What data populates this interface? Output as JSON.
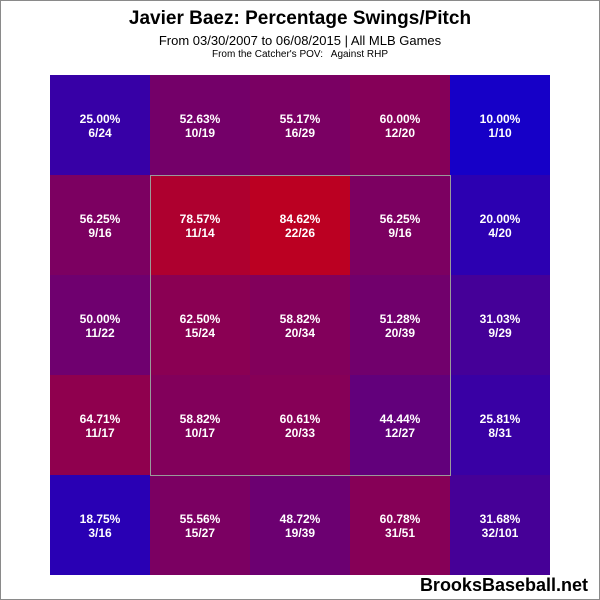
{
  "header": {
    "title": "Javier Baez: Percentage Swings/Pitch",
    "subtitle": "From 03/30/2007 to 06/08/2015 | All MLB Games",
    "note": "From the Catcher's POV:   Against RHP"
  },
  "footer": {
    "brand": "BrooksBaseball.net"
  },
  "colors": {
    "low": "#0000dd",
    "high": "#dd0000",
    "strike_zone_border": "#9a9a9a",
    "cell_text": "#ffffff"
  },
  "chart_data": {
    "type": "heatmap",
    "title": "Javier Baez: Percentage Swings/Pitch",
    "rows": 5,
    "cols": 5,
    "value_range": [
      0,
      100
    ],
    "strike_zone": {
      "row_start": 1,
      "row_end": 3,
      "col_start": 1,
      "col_end": 3
    },
    "cells": [
      [
        {
          "pct": "25.00%",
          "count": "6/24",
          "value": 25.0
        },
        {
          "pct": "52.63%",
          "count": "10/19",
          "value": 52.63
        },
        {
          "pct": "55.17%",
          "count": "16/29",
          "value": 55.17
        },
        {
          "pct": "60.00%",
          "count": "12/20",
          "value": 60.0
        },
        {
          "pct": "10.00%",
          "count": "1/10",
          "value": 10.0
        }
      ],
      [
        {
          "pct": "56.25%",
          "count": "9/16",
          "value": 56.25
        },
        {
          "pct": "78.57%",
          "count": "11/14",
          "value": 78.57
        },
        {
          "pct": "84.62%",
          "count": "22/26",
          "value": 84.62
        },
        {
          "pct": "56.25%",
          "count": "9/16",
          "value": 56.25
        },
        {
          "pct": "20.00%",
          "count": "4/20",
          "value": 20.0
        }
      ],
      [
        {
          "pct": "50.00%",
          "count": "11/22",
          "value": 50.0
        },
        {
          "pct": "62.50%",
          "count": "15/24",
          "value": 62.5
        },
        {
          "pct": "58.82%",
          "count": "20/34",
          "value": 58.82
        },
        {
          "pct": "51.28%",
          "count": "20/39",
          "value": 51.28
        },
        {
          "pct": "31.03%",
          "count": "9/29",
          "value": 31.03
        }
      ],
      [
        {
          "pct": "64.71%",
          "count": "11/17",
          "value": 64.71
        },
        {
          "pct": "58.82%",
          "count": "10/17",
          "value": 58.82
        },
        {
          "pct": "60.61%",
          "count": "20/33",
          "value": 60.61
        },
        {
          "pct": "44.44%",
          "count": "12/27",
          "value": 44.44
        },
        {
          "pct": "25.81%",
          "count": "8/31",
          "value": 25.81
        }
      ],
      [
        {
          "pct": "18.75%",
          "count": "3/16",
          "value": 18.75
        },
        {
          "pct": "55.56%",
          "count": "15/27",
          "value": 55.56
        },
        {
          "pct": "48.72%",
          "count": "19/39",
          "value": 48.72
        },
        {
          "pct": "60.78%",
          "count": "31/51",
          "value": 60.78
        },
        {
          "pct": "31.68%",
          "count": "32/101",
          "value": 31.68
        }
      ]
    ]
  }
}
